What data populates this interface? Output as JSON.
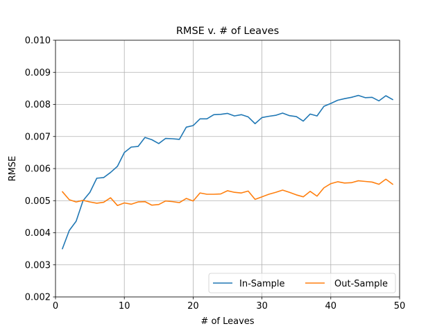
{
  "chart_data": {
    "type": "line",
    "title": "RMSE v. # of Leaves",
    "xlabel": "# of Leaves",
    "ylabel": "RMSE",
    "xlim": [
      0,
      50
    ],
    "ylim": [
      0.002,
      0.01
    ],
    "xticks": [
      0,
      10,
      20,
      30,
      40,
      50
    ],
    "yticks": [
      0.002,
      0.003,
      0.004,
      0.005,
      0.006,
      0.007,
      0.008,
      0.009,
      0.01
    ],
    "xtick_labels": [
      "0",
      "10",
      "20",
      "30",
      "40",
      "50"
    ],
    "ytick_labels": [
      "0.002",
      "0.003",
      "0.004",
      "0.005",
      "0.006",
      "0.007",
      "0.008",
      "0.009",
      "0.010"
    ],
    "grid": true,
    "legend_position": "bottom-right",
    "legend_columns": 2,
    "x": [
      1,
      2,
      3,
      4,
      5,
      6,
      7,
      8,
      9,
      10,
      11,
      12,
      13,
      14,
      15,
      16,
      17,
      18,
      19,
      20,
      21,
      22,
      23,
      24,
      25,
      26,
      27,
      28,
      29,
      30,
      31,
      32,
      33,
      34,
      35,
      36,
      37,
      38,
      39,
      40,
      41,
      42,
      43,
      44,
      45,
      46,
      47,
      48,
      49
    ],
    "series": [
      {
        "name": "In-Sample",
        "color": "#1f77b4",
        "values": [
          0.0035,
          0.00407,
          0.00436,
          0.005,
          0.00526,
          0.0057,
          0.00572,
          0.00588,
          0.00607,
          0.0065,
          0.00667,
          0.00669,
          0.00697,
          0.0069,
          0.00678,
          0.00694,
          0.00693,
          0.00691,
          0.00729,
          0.00734,
          0.00755,
          0.00755,
          0.00768,
          0.00769,
          0.00772,
          0.00764,
          0.00768,
          0.00761,
          0.0074,
          0.00759,
          0.00763,
          0.00766,
          0.00773,
          0.00765,
          0.00762,
          0.00748,
          0.0077,
          0.00764,
          0.00794,
          0.00803,
          0.00813,
          0.00818,
          0.00822,
          0.00828,
          0.00821,
          0.00822,
          0.00811,
          0.00827,
          0.00815
        ]
      },
      {
        "name": "Out-Sample",
        "color": "#ff7f0e",
        "values": [
          0.00528,
          0.00503,
          0.00496,
          0.00501,
          0.00496,
          0.00492,
          0.00495,
          0.00509,
          0.00485,
          0.00493,
          0.00489,
          0.00496,
          0.00497,
          0.00486,
          0.00488,
          0.00499,
          0.00497,
          0.00494,
          0.00507,
          0.00499,
          0.00524,
          0.0052,
          0.0052,
          0.00521,
          0.00531,
          0.00526,
          0.00524,
          0.0053,
          0.00504,
          0.00512,
          0.0052,
          0.00526,
          0.00533,
          0.00526,
          0.00518,
          0.00512,
          0.00529,
          0.00514,
          0.0054,
          0.00553,
          0.00559,
          0.00555,
          0.00556,
          0.00562,
          0.0056,
          0.00558,
          0.00551,
          0.00567,
          0.00551
        ]
      }
    ]
  }
}
